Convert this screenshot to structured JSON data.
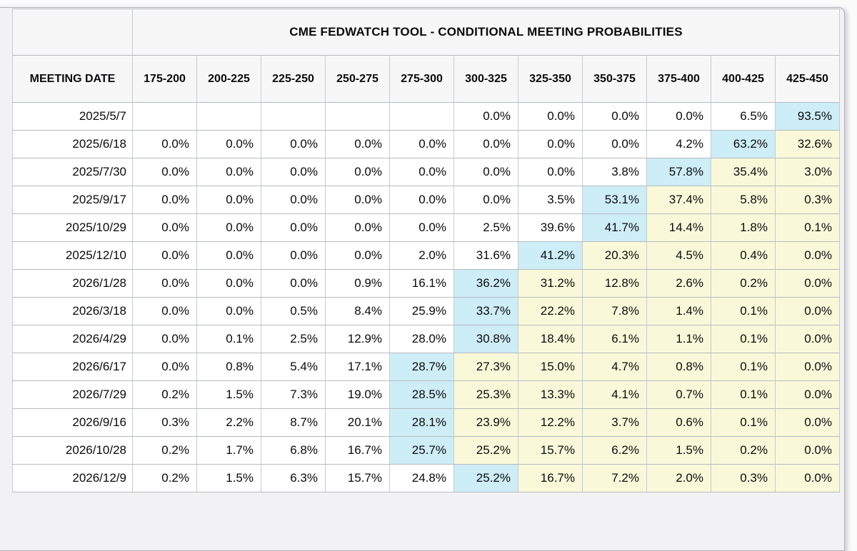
{
  "colors": {
    "highlight_blue": "#cdedf7",
    "highlight_yellow": "#f9f9da",
    "header_bg": "#f7f7f8",
    "cell_bg": "#ffffff",
    "page_bg": "#f2f2f4",
    "border": "#bdc1c5",
    "text": "#0b0b0d"
  },
  "chart_data": {
    "type": "table",
    "title": "CME FEDWATCH TOOL - CONDITIONAL MEETING PROBABILITIES",
    "row_header_label": "MEETING DATE",
    "columns": [
      "175-200",
      "200-225",
      "225-250",
      "250-275",
      "275-300",
      "300-325",
      "325-350",
      "350-375",
      "375-400",
      "400-425",
      "425-450"
    ],
    "rows": [
      {
        "date": "2025/5/7",
        "values": [
          null,
          null,
          null,
          null,
          null,
          "0.0%",
          "0.0%",
          "0.0%",
          "0.0%",
          "6.5%",
          "93.5%"
        ],
        "highlight_index": 10
      },
      {
        "date": "2025/6/18",
        "values": [
          "0.0%",
          "0.0%",
          "0.0%",
          "0.0%",
          "0.0%",
          "0.0%",
          "0.0%",
          "0.0%",
          "4.2%",
          "63.2%",
          "32.6%"
        ],
        "highlight_index": 9
      },
      {
        "date": "2025/7/30",
        "values": [
          "0.0%",
          "0.0%",
          "0.0%",
          "0.0%",
          "0.0%",
          "0.0%",
          "0.0%",
          "3.8%",
          "57.8%",
          "35.4%",
          "3.0%"
        ],
        "highlight_index": 8
      },
      {
        "date": "2025/9/17",
        "values": [
          "0.0%",
          "0.0%",
          "0.0%",
          "0.0%",
          "0.0%",
          "0.0%",
          "3.5%",
          "53.1%",
          "37.4%",
          "5.8%",
          "0.3%"
        ],
        "highlight_index": 7
      },
      {
        "date": "2025/10/29",
        "values": [
          "0.0%",
          "0.0%",
          "0.0%",
          "0.0%",
          "0.0%",
          "2.5%",
          "39.6%",
          "41.7%",
          "14.4%",
          "1.8%",
          "0.1%"
        ],
        "highlight_index": 7
      },
      {
        "date": "2025/12/10",
        "values": [
          "0.0%",
          "0.0%",
          "0.0%",
          "0.0%",
          "2.0%",
          "31.6%",
          "41.2%",
          "20.3%",
          "4.5%",
          "0.4%",
          "0.0%"
        ],
        "highlight_index": 6
      },
      {
        "date": "2026/1/28",
        "values": [
          "0.0%",
          "0.0%",
          "0.0%",
          "0.9%",
          "16.1%",
          "36.2%",
          "31.2%",
          "12.8%",
          "2.6%",
          "0.2%",
          "0.0%"
        ],
        "highlight_index": 5
      },
      {
        "date": "2026/3/18",
        "values": [
          "0.0%",
          "0.0%",
          "0.5%",
          "8.4%",
          "25.9%",
          "33.7%",
          "22.2%",
          "7.8%",
          "1.4%",
          "0.1%",
          "0.0%"
        ],
        "highlight_index": 5
      },
      {
        "date": "2026/4/29",
        "values": [
          "0.0%",
          "0.1%",
          "2.5%",
          "12.9%",
          "28.0%",
          "30.8%",
          "18.4%",
          "6.1%",
          "1.1%",
          "0.1%",
          "0.0%"
        ],
        "highlight_index": 5
      },
      {
        "date": "2026/6/17",
        "values": [
          "0.0%",
          "0.8%",
          "5.4%",
          "17.1%",
          "28.7%",
          "27.3%",
          "15.0%",
          "4.7%",
          "0.8%",
          "0.1%",
          "0.0%"
        ],
        "highlight_index": 4
      },
      {
        "date": "2026/7/29",
        "values": [
          "0.2%",
          "1.5%",
          "7.3%",
          "19.0%",
          "28.5%",
          "25.3%",
          "13.3%",
          "4.1%",
          "0.7%",
          "0.1%",
          "0.0%"
        ],
        "highlight_index": 4
      },
      {
        "date": "2026/9/16",
        "values": [
          "0.3%",
          "2.2%",
          "8.7%",
          "20.1%",
          "28.1%",
          "23.9%",
          "12.2%",
          "3.7%",
          "0.6%",
          "0.1%",
          "0.0%"
        ],
        "highlight_index": 4
      },
      {
        "date": "2026/10/28",
        "values": [
          "0.2%",
          "1.7%",
          "6.8%",
          "16.7%",
          "25.7%",
          "25.2%",
          "15.7%",
          "6.2%",
          "1.5%",
          "0.2%",
          "0.0%"
        ],
        "highlight_index": 4
      },
      {
        "date": "2026/12/9",
        "values": [
          "0.2%",
          "1.5%",
          "6.3%",
          "15.7%",
          "24.8%",
          "25.2%",
          "16.7%",
          "7.2%",
          "2.0%",
          "0.3%",
          "0.0%"
        ],
        "highlight_index": 5
      }
    ]
  }
}
